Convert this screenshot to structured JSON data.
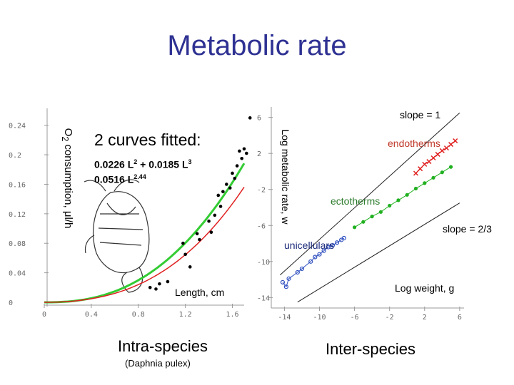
{
  "title": "Metabolic rate",
  "left_panel": {
    "fit_heading": "2 curves fitted:",
    "fit_1_base": "0.0226 L",
    "fit_1_exp1": "2",
    "fit_1_mid": " + 0.0185 L",
    "fit_1_exp2": "3",
    "fit_2_base": "0.0516 L",
    "fit_2_exp": "2.44",
    "ylabel_pre": "O",
    "ylabel_sub": "2",
    "ylabel_post": " consumption, μl/h",
    "xlabel": "Length, cm",
    "caption": "Intra-species",
    "subcaption": "(Daphnia pulex)"
  },
  "right_panel": {
    "ylabel": "Log metabolic rate, w",
    "xlabel": "Log weight, g",
    "slope1_label": "slope = 1",
    "slope2_label": "slope = 2/3",
    "endotherms_label": "endotherms",
    "ectotherms_label": "ectotherms",
    "unicellulars_label": "unicellulars",
    "caption": "Inter-species"
  },
  "colors": {
    "title": "#2e3192",
    "fit_green": "#33cc33",
    "fit_red": "#e02020",
    "endotherms": "#e02020",
    "ectotherms": "#20b020",
    "unicellulars": "#3050c0"
  },
  "chart_data": [
    {
      "type": "scatter",
      "xlabel": "Length, cm",
      "ylabel": "O2 consumption, μl/h",
      "xlim": [
        0,
        1.7
      ],
      "ylim": [
        0,
        0.26
      ],
      "x_ticks": [
        "0",
        "0.4",
        "0.8",
        "1.2",
        "1.6"
      ],
      "y_ticks": [
        "0",
        "0.04",
        "0.08",
        "0.12",
        "0.16",
        "0.2",
        "0.24"
      ],
      "points": [
        [
          0.9,
          0.02
        ],
        [
          0.95,
          0.018
        ],
        [
          0.98,
          0.025
        ],
        [
          1.05,
          0.028
        ],
        [
          1.18,
          0.08
        ],
        [
          1.2,
          0.065
        ],
        [
          1.24,
          0.048
        ],
        [
          1.3,
          0.093
        ],
        [
          1.32,
          0.085
        ],
        [
          1.4,
          0.11
        ],
        [
          1.42,
          0.095
        ],
        [
          1.45,
          0.118
        ],
        [
          1.48,
          0.145
        ],
        [
          1.5,
          0.13
        ],
        [
          1.52,
          0.15
        ],
        [
          1.55,
          0.16
        ],
        [
          1.58,
          0.155
        ],
        [
          1.6,
          0.175
        ],
        [
          1.62,
          0.168
        ],
        [
          1.64,
          0.185
        ],
        [
          1.66,
          0.205
        ],
        [
          1.68,
          0.195
        ],
        [
          1.7,
          0.208
        ],
        [
          1.72,
          0.202
        ],
        [
          1.75,
          0.25
        ]
      ],
      "series": [
        {
          "formula": "0.0226 L^2 + 0.0185 L^3",
          "color": "#e02020"
        },
        {
          "formula": "0.0516 L^2.44",
          "color": "#33cc33"
        }
      ]
    },
    {
      "type": "scatter",
      "xlabel": "Log weight, g",
      "ylabel": "Log metabolic rate, w",
      "xlim": [
        -15.5,
        6.5
      ],
      "ylim": [
        -15,
        7
      ],
      "x_ticks": [
        "-14",
        "-10",
        "-6",
        "-2",
        "2",
        "6"
      ],
      "y_ticks": [
        "6",
        "2",
        "-2",
        "-6",
        "-10",
        "-14"
      ],
      "reference_lines": [
        {
          "label": "slope = 1",
          "slope": 1
        },
        {
          "label": "slope = 2/3",
          "slope": 0.667
        }
      ],
      "series": [
        {
          "name": "endotherms",
          "points": [
            [
              1.0,
              -0.2
            ],
            [
              1.5,
              0.3
            ],
            [
              2.0,
              0.8
            ],
            [
              2.5,
              1.1
            ],
            [
              3.0,
              1.5
            ],
            [
              3.5,
              1.9
            ],
            [
              4.0,
              2.3
            ],
            [
              4.5,
              2.6
            ],
            [
              5.0,
              3.0
            ],
            [
              5.5,
              3.4
            ]
          ]
        },
        {
          "name": "ectotherms",
          "points": [
            [
              -6.0,
              -6.2
            ],
            [
              -5.0,
              -5.6
            ],
            [
              -4.0,
              -5.0
            ],
            [
              -3.0,
              -4.5
            ],
            [
              -2.0,
              -3.8
            ],
            [
              -1.0,
              -3.2
            ],
            [
              0.0,
              -2.6
            ],
            [
              1.0,
              -1.9
            ],
            [
              2.0,
              -1.3
            ],
            [
              3.0,
              -0.7
            ],
            [
              4.0,
              -0.1
            ],
            [
              5.0,
              0.5
            ]
          ]
        },
        {
          "name": "unicellulars",
          "points": [
            [
              -14.2,
              -12.3
            ],
            [
              -13.8,
              -12.8
            ],
            [
              -13.5,
              -11.9
            ],
            [
              -12.5,
              -11.2
            ],
            [
              -12.0,
              -10.8
            ],
            [
              -11.0,
              -10.0
            ],
            [
              -10.5,
              -9.5
            ],
            [
              -10.0,
              -9.2
            ],
            [
              -9.5,
              -8.8
            ],
            [
              -9.0,
              -8.4
            ],
            [
              -8.5,
              -8.2
            ],
            [
              -8.0,
              -7.9
            ],
            [
              -7.5,
              -7.6
            ],
            [
              -7.2,
              -7.4
            ]
          ]
        }
      ]
    }
  ]
}
